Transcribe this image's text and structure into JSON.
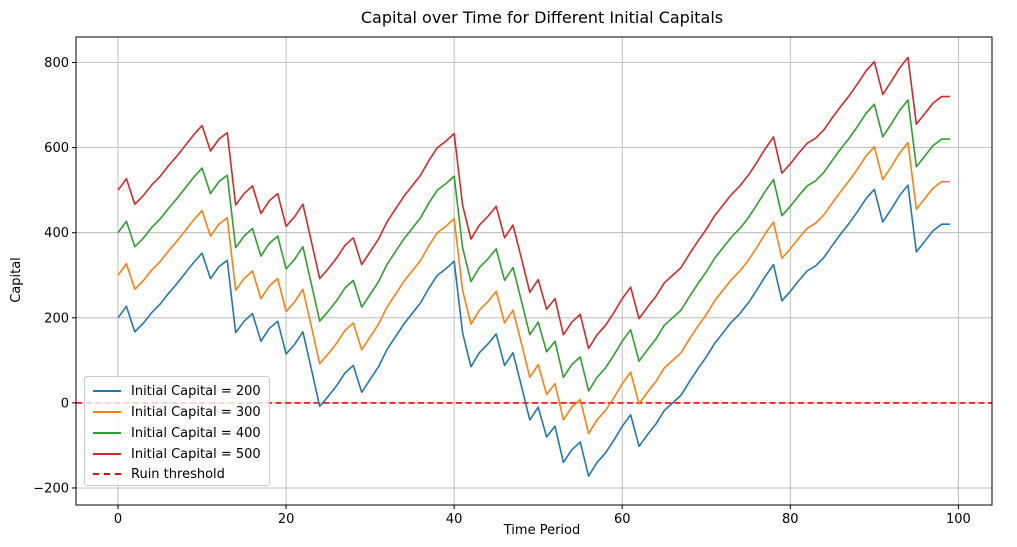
{
  "chart_data": {
    "type": "line",
    "title": "Capital over Time for Different Initial Capitals",
    "xlabel": "Time Period",
    "ylabel": "Capital",
    "xlim": [
      -5,
      104
    ],
    "ylim": [
      -240,
      860
    ],
    "x_ticks": [
      0,
      20,
      40,
      60,
      80,
      100
    ],
    "y_ticks": [
      -200,
      0,
      200,
      400,
      600,
      800
    ],
    "x_tick_labels": [
      "0",
      "20",
      "40",
      "60",
      "80",
      "100"
    ],
    "y_tick_labels": [
      "−200",
      "0",
      "200",
      "400",
      "600",
      "800"
    ],
    "grid": true,
    "legend_position": "lower-left",
    "x": [
      0,
      1,
      2,
      3,
      4,
      5,
      6,
      7,
      8,
      9,
      10,
      11,
      12,
      13,
      14,
      15,
      16,
      17,
      18,
      19,
      20,
      21,
      22,
      23,
      24,
      25,
      26,
      27,
      28,
      29,
      30,
      31,
      32,
      33,
      34,
      35,
      36,
      37,
      38,
      39,
      40,
      41,
      42,
      43,
      44,
      45,
      46,
      47,
      48,
      49,
      50,
      51,
      52,
      53,
      54,
      55,
      56,
      57,
      58,
      59,
      60,
      61,
      62,
      63,
      64,
      65,
      66,
      67,
      68,
      69,
      70,
      71,
      72,
      73,
      74,
      75,
      76,
      77,
      78,
      79,
      80,
      81,
      82,
      83,
      84,
      85,
      86,
      87,
      88,
      89,
      90,
      91,
      92,
      93,
      94,
      95,
      96,
      97,
      98,
      99
    ],
    "base_series_offsets": [
      0,
      100,
      200,
      300
    ],
    "series": [
      {
        "name": "Initial Capital = 200",
        "color": "#1f77b4",
        "offset": 0
      },
      {
        "name": "Initial Capital = 300",
        "color": "#ff7f0e",
        "offset": 100
      },
      {
        "name": "Initial Capital = 400",
        "color": "#2ca02c",
        "offset": 200
      },
      {
        "name": "Initial Capital = 500",
        "color": "#d62728",
        "offset": 300
      }
    ],
    "base_values": [
      200,
      227,
      167,
      187,
      212,
      232,
      257,
      280,
      305,
      330,
      352,
      292,
      320,
      335,
      165,
      192,
      210,
      145,
      175,
      192,
      115,
      137,
      167,
      80,
      -8,
      15,
      40,
      70,
      88,
      25,
      55,
      85,
      125,
      155,
      185,
      210,
      235,
      270,
      300,
      315,
      333,
      165,
      85,
      118,
      138,
      162,
      88,
      118,
      40,
      -40,
      -10,
      -80,
      -55,
      -140,
      -110,
      -92,
      -172,
      -140,
      -118,
      -88,
      -55,
      -28,
      -102,
      -75,
      -50,
      -18,
      0,
      18,
      50,
      80,
      108,
      140,
      165,
      190,
      210,
      235,
      265,
      297,
      325,
      240,
      262,
      287,
      310,
      322,
      342,
      370,
      397,
      422,
      450,
      480,
      502,
      425,
      455,
      487,
      512,
      355,
      380,
      405,
      420,
      420
    ],
    "ruin_threshold": {
      "name": "Ruin threshold",
      "value": 0,
      "color": "#ff0000",
      "style": "dashed"
    }
  }
}
